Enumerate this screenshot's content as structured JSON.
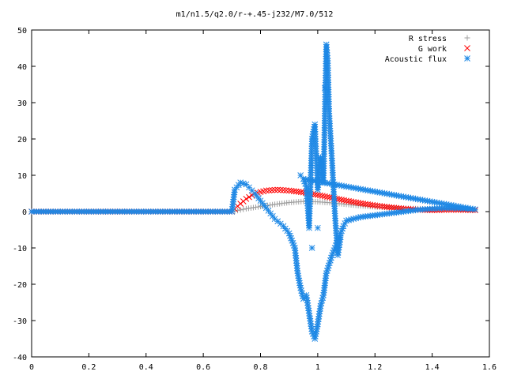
{
  "chart_data": {
    "type": "scatter",
    "title": "m1/n1.5/q2.0/r-+.45-j232/M7.0/512",
    "xlabel": "",
    "ylabel": "",
    "xlim": [
      0,
      1.6
    ],
    "ylim": [
      -40,
      50
    ],
    "x_ticks": [
      "0",
      "0.2",
      "0.4",
      "0.6",
      "0.8",
      "1",
      "1.2",
      "1.4",
      "1.6"
    ],
    "y_ticks": [
      "-40",
      "-30",
      "-20",
      "-10",
      "0",
      "10",
      "20",
      "30",
      "40",
      "50"
    ],
    "legend_position": "top-right",
    "grid": false,
    "series": [
      {
        "name": "R stress",
        "marker": "+",
        "color": "#a0a0a0",
        "points": [
          [
            0.0,
            0.0
          ],
          [
            0.2,
            0.0
          ],
          [
            0.4,
            0.0
          ],
          [
            0.6,
            0.0
          ],
          [
            0.7,
            0.0
          ],
          [
            0.72,
            0.3
          ],
          [
            0.75,
            0.8
          ],
          [
            0.8,
            1.4
          ],
          [
            0.85,
            2.0
          ],
          [
            0.9,
            2.5
          ],
          [
            0.95,
            2.8
          ],
          [
            1.0,
            2.7
          ],
          [
            1.05,
            2.4
          ],
          [
            1.1,
            2.0
          ],
          [
            1.15,
            1.6
          ],
          [
            1.2,
            1.3
          ],
          [
            1.25,
            1.1
          ],
          [
            1.3,
            0.9
          ],
          [
            1.35,
            0.8
          ],
          [
            1.4,
            0.7
          ],
          [
            1.45,
            0.6
          ],
          [
            1.5,
            0.5
          ],
          [
            1.55,
            0.4
          ]
        ]
      },
      {
        "name": "G work",
        "marker": "x",
        "color": "#ff0000",
        "points": [
          [
            0.0,
            0.0
          ],
          [
            0.2,
            0.0
          ],
          [
            0.4,
            0.0
          ],
          [
            0.6,
            0.0
          ],
          [
            0.7,
            0.0
          ],
          [
            0.72,
            1.5
          ],
          [
            0.75,
            3.5
          ],
          [
            0.78,
            5.0
          ],
          [
            0.82,
            5.8
          ],
          [
            0.86,
            6.0
          ],
          [
            0.9,
            5.8
          ],
          [
            0.95,
            5.3
          ],
          [
            1.0,
            4.6
          ],
          [
            1.05,
            3.8
          ],
          [
            1.1,
            3.0
          ],
          [
            1.15,
            2.3
          ],
          [
            1.2,
            1.7
          ],
          [
            1.25,
            1.2
          ],
          [
            1.3,
            0.8
          ],
          [
            1.35,
            0.5
          ],
          [
            1.4,
            0.4
          ],
          [
            1.45,
            0.5
          ],
          [
            1.5,
            0.5
          ],
          [
            1.55,
            0.4
          ]
        ]
      },
      {
        "name": "Acoustic flux",
        "marker": "*",
        "color": "#1e88e5",
        "points": [
          [
            0.0,
            0.0
          ],
          [
            0.2,
            0.0
          ],
          [
            0.4,
            0.0
          ],
          [
            0.6,
            0.0
          ],
          [
            0.7,
            0.0
          ],
          [
            0.71,
            6.0
          ],
          [
            0.73,
            8.0
          ],
          [
            0.75,
            7.5
          ],
          [
            0.78,
            5.0
          ],
          [
            0.82,
            1.0
          ],
          [
            0.85,
            -2.0
          ],
          [
            0.88,
            -4.0
          ],
          [
            0.9,
            -6.0
          ],
          [
            0.92,
            -10.0
          ],
          [
            0.93,
            -17.0
          ],
          [
            0.94,
            -21.0
          ],
          [
            0.95,
            -24.0
          ],
          [
            0.96,
            -23.0
          ],
          [
            0.97,
            -28.0
          ],
          [
            0.98,
            -33.0
          ],
          [
            0.99,
            -35.0
          ],
          [
            1.0,
            -31.0
          ],
          [
            1.01,
            -26.0
          ],
          [
            1.02,
            -23.0
          ],
          [
            1.03,
            -17.0
          ],
          [
            1.05,
            -12.0
          ],
          [
            1.07,
            -8.0
          ],
          [
            1.09,
            -4.0
          ],
          [
            1.1,
            -2.5
          ],
          [
            1.15,
            -1.5
          ],
          [
            1.2,
            -1.0
          ],
          [
            1.25,
            -0.5
          ],
          [
            1.3,
            0.0
          ],
          [
            1.35,
            0.5
          ],
          [
            1.4,
            0.8
          ],
          [
            1.45,
            1.0
          ],
          [
            1.5,
            0.9
          ],
          [
            1.55,
            0.6
          ],
          [
            0.94,
            10.0
          ],
          [
            0.95,
            9.0
          ],
          [
            0.96,
            7.0
          ],
          [
            0.97,
            -4.5
          ],
          [
            0.98,
            20.0
          ],
          [
            0.99,
            24.0
          ],
          [
            1.0,
            6.0
          ],
          [
            1.01,
            15.0
          ],
          [
            1.02,
            8.0
          ],
          [
            1.03,
            46.0
          ],
          [
            1.035,
            41.5
          ],
          [
            1.025,
            34.0
          ],
          [
            1.04,
            27.0
          ],
          [
            1.05,
            14.0
          ],
          [
            1.06,
            -0.5
          ],
          [
            1.07,
            -12.0
          ],
          [
            1.08,
            -7.0
          ],
          [
            1.0,
            -4.5
          ],
          [
            0.98,
            -10.0
          ]
        ]
      }
    ]
  }
}
